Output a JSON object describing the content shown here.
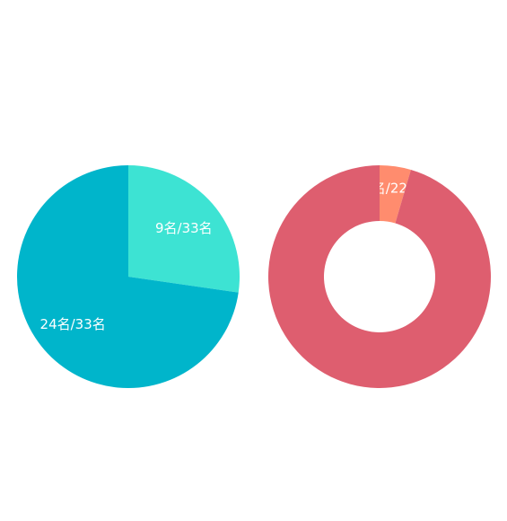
{
  "chart_data": [
    {
      "type": "pie",
      "slices": [
        {
          "label": "9名/33名",
          "value": 9,
          "color": "#3de3d3"
        },
        {
          "label": "24名/33名",
          "value": 24,
          "color": "#00b5cb"
        }
      ]
    },
    {
      "type": "pie",
      "donut": true,
      "slices": [
        {
          "label": "1名/22名",
          "value": 1,
          "color": "#ff8c6e"
        },
        {
          "label": "",
          "value": 21,
          "color": "#de5e6f"
        }
      ]
    }
  ]
}
